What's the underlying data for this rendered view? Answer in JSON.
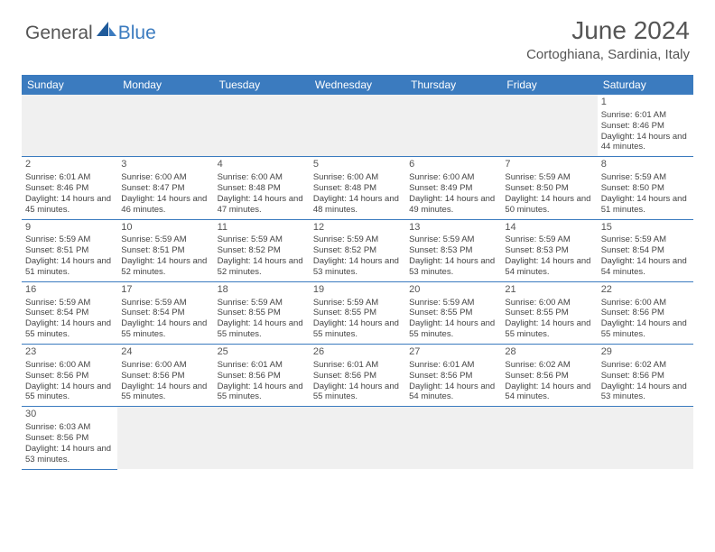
{
  "brand": {
    "part1": "General",
    "part2": "Blue"
  },
  "title": "June 2024",
  "location": "Cortoghiana, Sardinia, Italy",
  "colors": {
    "header_bg": "#3b7bbf",
    "header_text": "#ffffff",
    "cell_border": "#3b7bbf",
    "blank_bg": "#f0f0f0",
    "text": "#444444",
    "title_color": "#555555"
  },
  "day_headers": [
    "Sunday",
    "Monday",
    "Tuesday",
    "Wednesday",
    "Thursday",
    "Friday",
    "Saturday"
  ],
  "first_weekday_index": 6,
  "days": [
    {
      "n": 1,
      "sunrise": "6:01 AM",
      "sunset": "8:46 PM",
      "daylight": "14 hours and 44 minutes."
    },
    {
      "n": 2,
      "sunrise": "6:01 AM",
      "sunset": "8:46 PM",
      "daylight": "14 hours and 45 minutes."
    },
    {
      "n": 3,
      "sunrise": "6:00 AM",
      "sunset": "8:47 PM",
      "daylight": "14 hours and 46 minutes."
    },
    {
      "n": 4,
      "sunrise": "6:00 AM",
      "sunset": "8:48 PM",
      "daylight": "14 hours and 47 minutes."
    },
    {
      "n": 5,
      "sunrise": "6:00 AM",
      "sunset": "8:48 PM",
      "daylight": "14 hours and 48 minutes."
    },
    {
      "n": 6,
      "sunrise": "6:00 AM",
      "sunset": "8:49 PM",
      "daylight": "14 hours and 49 minutes."
    },
    {
      "n": 7,
      "sunrise": "5:59 AM",
      "sunset": "8:50 PM",
      "daylight": "14 hours and 50 minutes."
    },
    {
      "n": 8,
      "sunrise": "5:59 AM",
      "sunset": "8:50 PM",
      "daylight": "14 hours and 51 minutes."
    },
    {
      "n": 9,
      "sunrise": "5:59 AM",
      "sunset": "8:51 PM",
      "daylight": "14 hours and 51 minutes."
    },
    {
      "n": 10,
      "sunrise": "5:59 AM",
      "sunset": "8:51 PM",
      "daylight": "14 hours and 52 minutes."
    },
    {
      "n": 11,
      "sunrise": "5:59 AM",
      "sunset": "8:52 PM",
      "daylight": "14 hours and 52 minutes."
    },
    {
      "n": 12,
      "sunrise": "5:59 AM",
      "sunset": "8:52 PM",
      "daylight": "14 hours and 53 minutes."
    },
    {
      "n": 13,
      "sunrise": "5:59 AM",
      "sunset": "8:53 PM",
      "daylight": "14 hours and 53 minutes."
    },
    {
      "n": 14,
      "sunrise": "5:59 AM",
      "sunset": "8:53 PM",
      "daylight": "14 hours and 54 minutes."
    },
    {
      "n": 15,
      "sunrise": "5:59 AM",
      "sunset": "8:54 PM",
      "daylight": "14 hours and 54 minutes."
    },
    {
      "n": 16,
      "sunrise": "5:59 AM",
      "sunset": "8:54 PM",
      "daylight": "14 hours and 55 minutes."
    },
    {
      "n": 17,
      "sunrise": "5:59 AM",
      "sunset": "8:54 PM",
      "daylight": "14 hours and 55 minutes."
    },
    {
      "n": 18,
      "sunrise": "5:59 AM",
      "sunset": "8:55 PM",
      "daylight": "14 hours and 55 minutes."
    },
    {
      "n": 19,
      "sunrise": "5:59 AM",
      "sunset": "8:55 PM",
      "daylight": "14 hours and 55 minutes."
    },
    {
      "n": 20,
      "sunrise": "5:59 AM",
      "sunset": "8:55 PM",
      "daylight": "14 hours and 55 minutes."
    },
    {
      "n": 21,
      "sunrise": "6:00 AM",
      "sunset": "8:55 PM",
      "daylight": "14 hours and 55 minutes."
    },
    {
      "n": 22,
      "sunrise": "6:00 AM",
      "sunset": "8:56 PM",
      "daylight": "14 hours and 55 minutes."
    },
    {
      "n": 23,
      "sunrise": "6:00 AM",
      "sunset": "8:56 PM",
      "daylight": "14 hours and 55 minutes."
    },
    {
      "n": 24,
      "sunrise": "6:00 AM",
      "sunset": "8:56 PM",
      "daylight": "14 hours and 55 minutes."
    },
    {
      "n": 25,
      "sunrise": "6:01 AM",
      "sunset": "8:56 PM",
      "daylight": "14 hours and 55 minutes."
    },
    {
      "n": 26,
      "sunrise": "6:01 AM",
      "sunset": "8:56 PM",
      "daylight": "14 hours and 55 minutes."
    },
    {
      "n": 27,
      "sunrise": "6:01 AM",
      "sunset": "8:56 PM",
      "daylight": "14 hours and 54 minutes."
    },
    {
      "n": 28,
      "sunrise": "6:02 AM",
      "sunset": "8:56 PM",
      "daylight": "14 hours and 54 minutes."
    },
    {
      "n": 29,
      "sunrise": "6:02 AM",
      "sunset": "8:56 PM",
      "daylight": "14 hours and 53 minutes."
    },
    {
      "n": 30,
      "sunrise": "6:03 AM",
      "sunset": "8:56 PM",
      "daylight": "14 hours and 53 minutes."
    }
  ],
  "labels": {
    "sunrise": "Sunrise:",
    "sunset": "Sunset:",
    "daylight": "Daylight:"
  }
}
